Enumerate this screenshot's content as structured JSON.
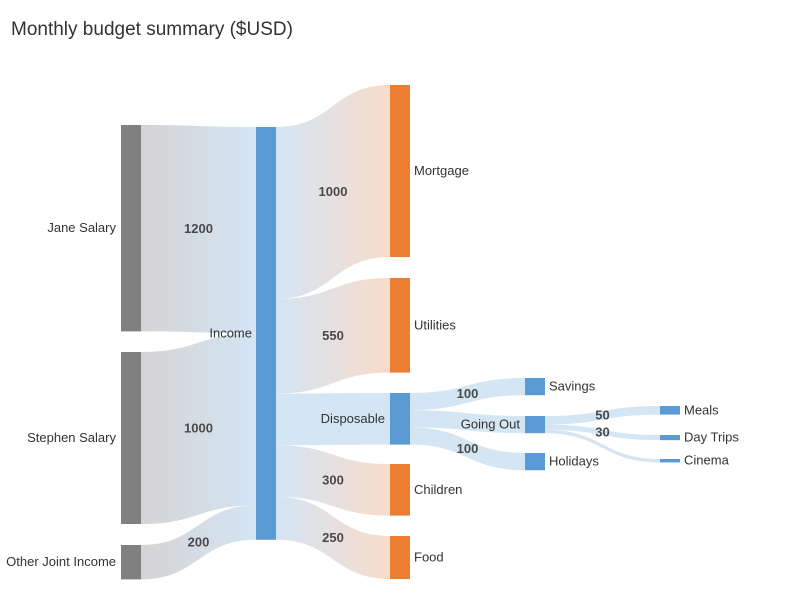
{
  "chart_data": {
    "type": "sankey",
    "title": "Monthly budget summary ($USD)",
    "nodes": [
      {
        "id": "Jane Salary",
        "label": "Jane Salary",
        "color": "#808080"
      },
      {
        "id": "Stephen Salary",
        "label": "Stephen Salary",
        "color": "#808080"
      },
      {
        "id": "Other Joint Income",
        "label": "Other Joint Income",
        "color": "#808080"
      },
      {
        "id": "Income",
        "label": "Income",
        "color": "#5b9bd5"
      },
      {
        "id": "Mortgage",
        "label": "Mortgage",
        "color": "#ed7d31"
      },
      {
        "id": "Utilities",
        "label": "Utilities",
        "color": "#ed7d31"
      },
      {
        "id": "Disposable",
        "label": "Disposable",
        "color": "#5b9bd5"
      },
      {
        "id": "Children",
        "label": "Children",
        "color": "#ed7d31"
      },
      {
        "id": "Food",
        "label": "Food",
        "color": "#ed7d31"
      },
      {
        "id": "Savings",
        "label": "Savings",
        "color": "#5b9bd5"
      },
      {
        "id": "Going Out",
        "label": "Going Out",
        "color": "#5b9bd5"
      },
      {
        "id": "Holidays",
        "label": "Holidays",
        "color": "#5b9bd5"
      },
      {
        "id": "Meals",
        "label": "Meals",
        "color": "#5b9bd5"
      },
      {
        "id": "Day Trips",
        "label": "Day Trips",
        "color": "#5b9bd5"
      },
      {
        "id": "Cinema",
        "label": "Cinema",
        "color": "#5b9bd5"
      }
    ],
    "links": [
      {
        "source": "Jane Salary",
        "target": "Income",
        "value": 1200,
        "label": "1200"
      },
      {
        "source": "Stephen Salary",
        "target": "Income",
        "value": 1000,
        "label": "1000"
      },
      {
        "source": "Other Joint Income",
        "target": "Income",
        "value": 200,
        "label": "200"
      },
      {
        "source": "Income",
        "target": "Mortgage",
        "value": 1000,
        "label": "1000"
      },
      {
        "source": "Income",
        "target": "Utilities",
        "value": 550,
        "label": "550"
      },
      {
        "source": "Income",
        "target": "Disposable",
        "value": 300,
        "label": ""
      },
      {
        "source": "Income",
        "target": "Children",
        "value": 300,
        "label": "300"
      },
      {
        "source": "Income",
        "target": "Food",
        "value": 250,
        "label": "250"
      },
      {
        "source": "Disposable",
        "target": "Savings",
        "value": 100,
        "label": "100"
      },
      {
        "source": "Disposable",
        "target": "Going Out",
        "value": 100,
        "label": ""
      },
      {
        "source": "Disposable",
        "target": "Holidays",
        "value": 100,
        "label": "100"
      },
      {
        "source": "Going Out",
        "target": "Meals",
        "value": 50,
        "label": "50"
      },
      {
        "source": "Going Out",
        "target": "Day Trips",
        "value": 30,
        "label": "30"
      },
      {
        "source": "Going Out",
        "target": "Cinema",
        "value": 20,
        "label": ""
      }
    ],
    "colors": {
      "source_node": "#808080",
      "flow_node": "#5b9bd5",
      "sink_node": "#ed7d31",
      "link_base": "#cfe2f3",
      "link_grey": "#cfcfcf",
      "link_orange": "#f8d8c3"
    }
  }
}
